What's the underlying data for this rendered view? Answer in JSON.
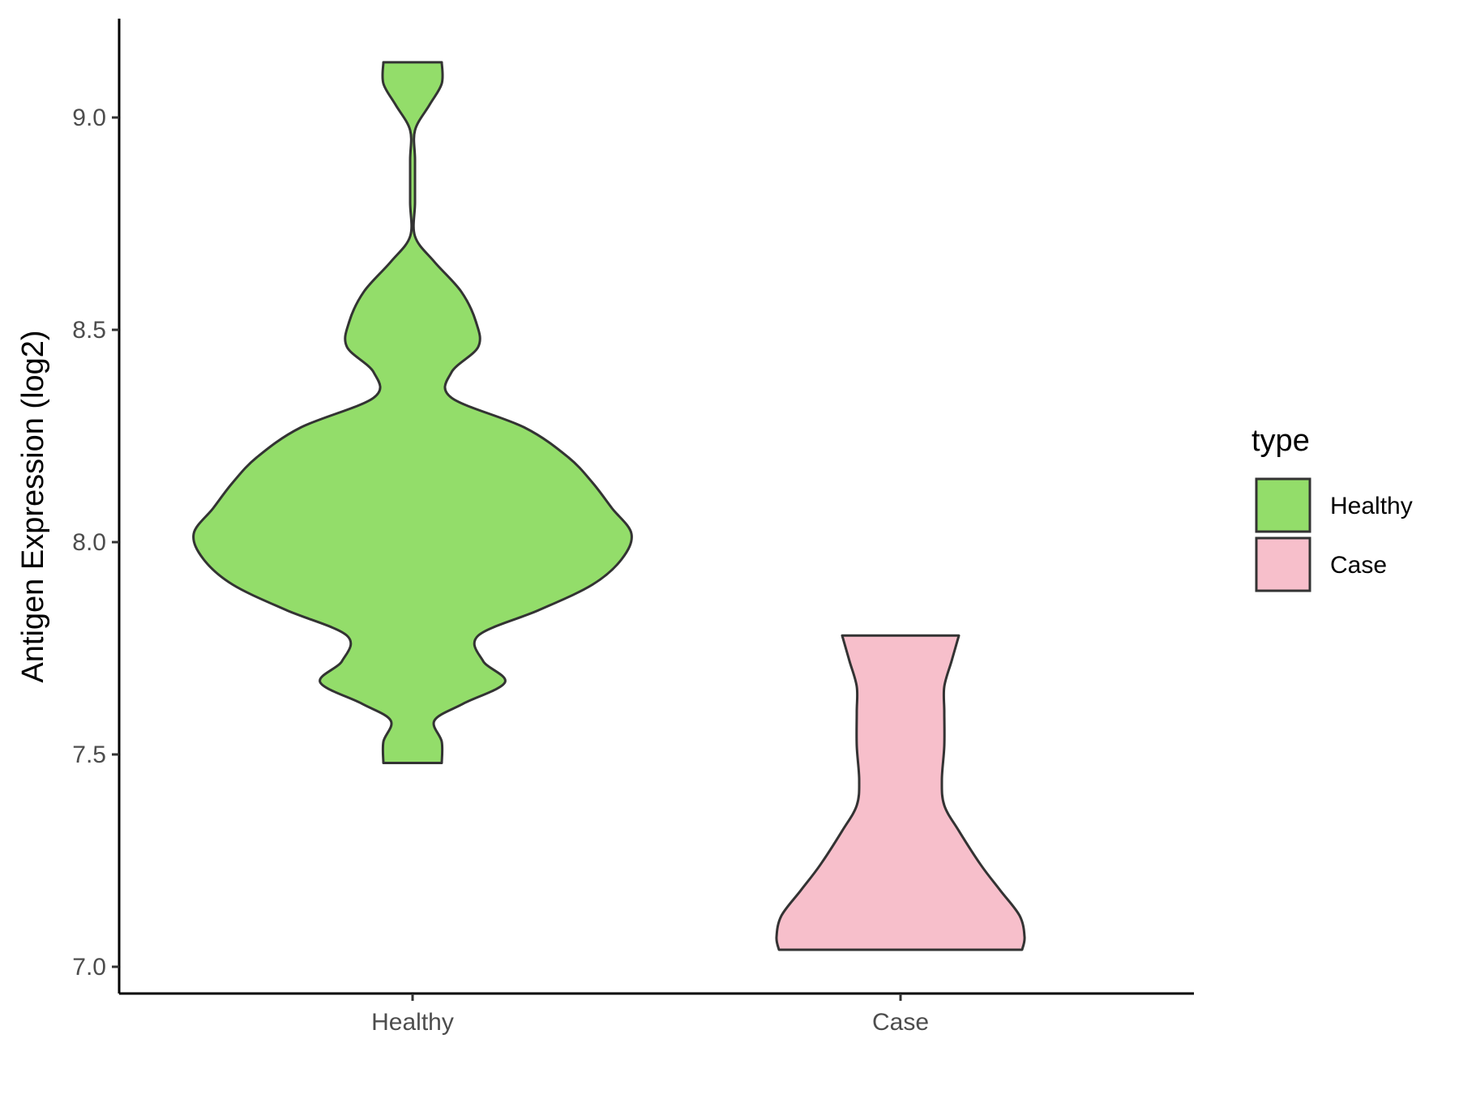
{
  "chart_data": {
    "type": "violin",
    "ylabel": "Antigen Expression (log2)",
    "xlabel": "",
    "ylim": [
      6.96,
      9.24
    ],
    "yticks": [
      "7.0",
      "7.5",
      "8.0",
      "8.5",
      "9.0"
    ],
    "categories": [
      "Healthy",
      "Case"
    ],
    "grid": false,
    "legend": {
      "title": "type",
      "placement": "right",
      "entries": [
        {
          "label": "Healthy",
          "color": "#93dd6a"
        },
        {
          "label": "Case",
          "color": "#f7bfcb"
        }
      ]
    },
    "series": [
      {
        "category": "Healthy",
        "color": "#93dd6a",
        "min": 7.48,
        "max": 9.13,
        "density": [
          [
            7.48,
            0.12
          ],
          [
            7.53,
            0.12
          ],
          [
            7.58,
            0.09
          ],
          [
            7.62,
            0.21
          ],
          [
            7.67,
            0.38
          ],
          [
            7.72,
            0.29
          ],
          [
            7.78,
            0.27
          ],
          [
            7.84,
            0.52
          ],
          [
            7.9,
            0.74
          ],
          [
            7.96,
            0.86
          ],
          [
            8.02,
            0.9
          ],
          [
            8.08,
            0.82
          ],
          [
            8.14,
            0.74
          ],
          [
            8.2,
            0.64
          ],
          [
            8.27,
            0.46
          ],
          [
            8.34,
            0.16
          ],
          [
            8.4,
            0.16
          ],
          [
            8.46,
            0.27
          ],
          [
            8.52,
            0.26
          ],
          [
            8.59,
            0.2
          ],
          [
            8.66,
            0.09
          ],
          [
            8.72,
            0.01
          ],
          [
            8.8,
            0.01
          ],
          [
            8.9,
            0.01
          ],
          [
            8.97,
            0.01
          ],
          [
            9.03,
            0.07
          ],
          [
            9.08,
            0.12
          ],
          [
            9.13,
            0.12
          ]
        ]
      },
      {
        "category": "Case",
        "color": "#f7bfcb",
        "min": 7.04,
        "max": 7.78,
        "density": [
          [
            7.04,
            0.5
          ],
          [
            7.07,
            0.51
          ],
          [
            7.12,
            0.49
          ],
          [
            7.18,
            0.41
          ],
          [
            7.24,
            0.33
          ],
          [
            7.32,
            0.24
          ],
          [
            7.38,
            0.18
          ],
          [
            7.44,
            0.17
          ],
          [
            7.52,
            0.18
          ],
          [
            7.6,
            0.18
          ],
          [
            7.66,
            0.18
          ],
          [
            7.72,
            0.21
          ],
          [
            7.78,
            0.24
          ]
        ]
      }
    ]
  }
}
